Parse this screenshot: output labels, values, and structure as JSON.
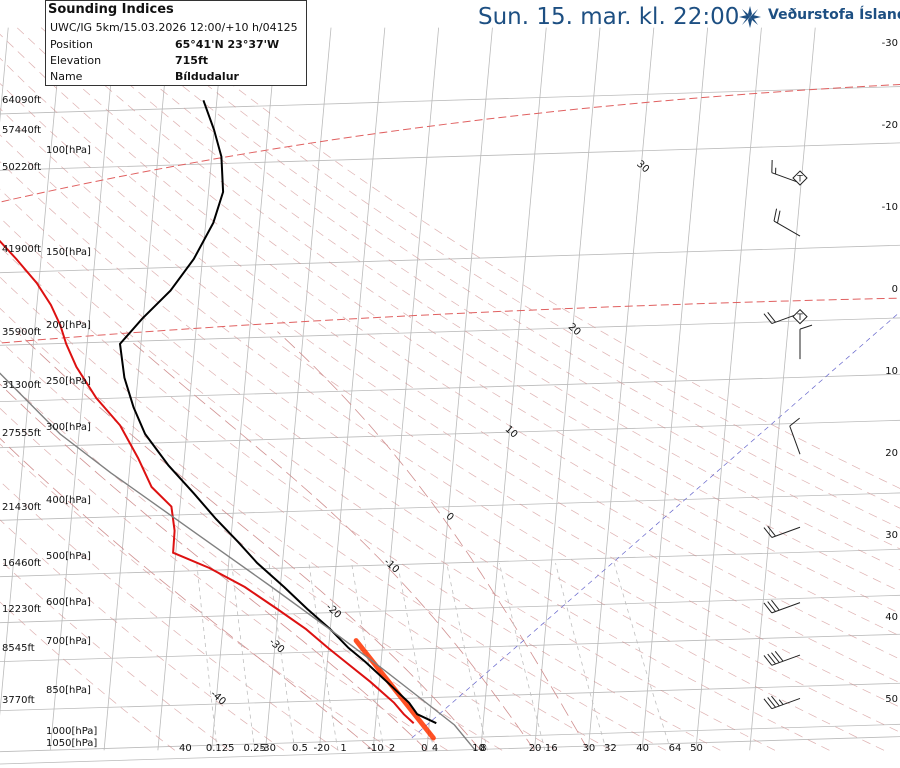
{
  "header": {
    "title": "Sun. 15. mar. kl. 22:00",
    "brand": "Veðurstofa Íslands",
    "brand_color": "#1d4f82"
  },
  "info": {
    "title": "Sounding Indices",
    "model_run": "UWC/IG 5km/15.03.2026 12:00/+10 h/04125",
    "rows": [
      {
        "label": "Position",
        "value": "65°41'N 23°37'W"
      },
      {
        "label": "Elevation",
        "value": "715ft"
      },
      {
        "label": "Name",
        "value": "Bíldudalur"
      }
    ]
  },
  "chart_data": {
    "type": "line",
    "title": "",
    "xlabel": "",
    "ylabel": "",
    "altitude_labels": [
      {
        "text": "64090ft",
        "p": 80
      },
      {
        "text": "57440ft",
        "p": 90
      },
      {
        "text": "50220ft",
        "p": 104
      },
      {
        "text": "41900ft",
        "p": 144
      },
      {
        "text": "35900ft",
        "p": 200
      },
      {
        "text": "31300ft",
        "p": 247
      },
      {
        "text": "27555ft",
        "p": 299
      },
      {
        "text": "21430ft",
        "p": 400
      },
      {
        "text": "16460ft",
        "p": 500
      },
      {
        "text": "12230ft",
        "p": 600
      },
      {
        "text": "8545ft",
        "p": 700
      },
      {
        "text": "3770ft",
        "p": 860
      }
    ],
    "pressure_labels": [
      {
        "text": "100[hPa]",
        "p": 100
      },
      {
        "text": "150[hPa]",
        "p": 150
      },
      {
        "text": "200[hPa]",
        "p": 200
      },
      {
        "text": "250[hPa]",
        "p": 250
      },
      {
        "text": "300[hPa]",
        "p": 300
      },
      {
        "text": "400[hPa]",
        "p": 400
      },
      {
        "text": "500[hPa]",
        "p": 500
      },
      {
        "text": "600[hPa]",
        "p": 600
      },
      {
        "text": "700[hPa]",
        "p": 700
      },
      {
        "text": "850[hPa]",
        "p": 850
      },
      {
        "text": "1000[hPa]",
        "p": 1000
      },
      {
        "text": "1050[hPa]",
        "p": 1050
      }
    ],
    "right_labels": [
      "-30",
      "-20",
      "-10",
      "0",
      "10",
      "20",
      "30",
      "40",
      "50"
    ],
    "bottom_labels": [
      {
        "text": "40",
        "t": -45
      },
      {
        "text": "0.125",
        "t": -40
      },
      {
        "text": "0.25",
        "t": -33
      },
      {
        "text": "-30",
        "t": -30
      },
      {
        "text": "0.5",
        "t": -24
      },
      {
        "text": "-20",
        "t": -20
      },
      {
        "text": "1",
        "t": -15
      },
      {
        "text": "-10",
        "t": -10
      },
      {
        "text": "2",
        "t": -6
      },
      {
        "text": "0",
        "t": 0
      },
      {
        "text": "4",
        "t": 2
      },
      {
        "text": "10",
        "t": 9.5
      },
      {
        "text": "8",
        "t": 11
      },
      {
        "text": "20",
        "t": 20
      },
      {
        "text": "16",
        "t": 23
      },
      {
        "text": "30",
        "t": 30
      },
      {
        "text": "32",
        "t": 34
      },
      {
        "text": "40",
        "t": 40
      },
      {
        "text": "64",
        "t": 46
      },
      {
        "text": "50",
        "t": 50
      }
    ],
    "isotherm_labels": [
      {
        "text": "30",
        "t": 30,
        "p": 105
      },
      {
        "text": "20",
        "t": 20,
        "p": 200
      },
      {
        "text": "10",
        "t": 10,
        "p": 300
      },
      {
        "text": "0",
        "t": 0,
        "p": 420
      },
      {
        "text": "-10",
        "t": -10,
        "p": 510
      },
      {
        "text": "-20",
        "t": -20,
        "p": 610
      },
      {
        "text": "-30",
        "t": -30,
        "p": 700
      },
      {
        "text": "-40",
        "t": -40,
        "p": 860
      }
    ],
    "series": [
      {
        "role": "temperature",
        "color": "#000000",
        "points": [
          [
            943,
            1.3
          ],
          [
            910,
            -2.4
          ],
          [
            870,
            -4.1
          ],
          [
            800,
            -8.6
          ],
          [
            740,
            -12.9
          ],
          [
            700,
            -16.3
          ],
          [
            650,
            -20.0
          ],
          [
            600,
            -24.6
          ],
          [
            550,
            -29.3
          ],
          [
            500,
            -34.7
          ],
          [
            460,
            -38.6
          ],
          [
            420,
            -43.1
          ],
          [
            380,
            -47.6
          ],
          [
            340,
            -52.8
          ],
          [
            300,
            -57.7
          ],
          [
            270,
            -60.3
          ],
          [
            240,
            -62.5
          ],
          [
            210,
            -63.9
          ],
          [
            190,
            -60.2
          ],
          [
            170,
            -55.4
          ],
          [
            150,
            -51.6
          ],
          [
            130,
            -48.6
          ],
          [
            115,
            -47.3
          ],
          [
            100,
            -48.2
          ],
          [
            90,
            -50.0
          ],
          [
            80,
            -52.5
          ]
        ]
      },
      {
        "role": "dewpoint",
        "color": "#dd1111",
        "points": [
          [
            943,
            -2.9
          ],
          [
            910,
            -4.9
          ],
          [
            870,
            -6.9
          ],
          [
            800,
            -11.7
          ],
          [
            740,
            -16.6
          ],
          [
            700,
            -20.1
          ],
          [
            650,
            -24.5
          ],
          [
            600,
            -30.2
          ],
          [
            550,
            -36.6
          ],
          [
            510,
            -43.5
          ],
          [
            480,
            -50.5
          ],
          [
            440,
            -50.6
          ],
          [
            400,
            -51.6
          ],
          [
            370,
            -55.6
          ],
          [
            330,
            -58.6
          ],
          [
            290,
            -62.5
          ],
          [
            260,
            -67.4
          ],
          [
            230,
            -71.6
          ],
          [
            210,
            -73.9
          ],
          [
            195,
            -75.3
          ],
          [
            180,
            -77.4
          ],
          [
            165,
            -80.4
          ],
          [
            150,
            -84.6
          ],
          [
            135,
            -89.6
          ],
          [
            120,
            -89.2
          ],
          [
            110,
            -91.5
          ],
          [
            100,
            -92.8
          ],
          [
            90,
            -95.0
          ],
          [
            80,
            -97.5
          ]
        ]
      },
      {
        "role": "parcel",
        "color": "#808080",
        "points": [
          [
            1050,
            9
          ],
          [
            950,
            4.7
          ],
          [
            850,
            -2.4
          ],
          [
            750,
            -10.5
          ],
          [
            650,
            -20.1
          ],
          [
            550,
            -31.6
          ],
          [
            450,
            -45.7
          ],
          [
            350,
            -63.4
          ],
          [
            300,
            -73.5
          ],
          [
            230,
            -87.0
          ],
          [
            160,
            -101.1
          ]
        ]
      },
      {
        "role": "parcel-dry",
        "color": "#808080",
        "points": [
          [
            160,
            -101.1
          ],
          [
            100,
            -124
          ],
          [
            80,
            -135
          ]
        ]
      }
    ],
    "wind_barbs": [
      {
        "p": 111,
        "dir": 290,
        "speed": 15
      },
      {
        "p": 137,
        "dir": 300,
        "speed": 20
      },
      {
        "p": 186,
        "dir": 250,
        "speed": 20
      },
      {
        "p": 223,
        "dir": 0,
        "speed": 10
      },
      {
        "p": 325,
        "dir": 340,
        "speed": 10
      },
      {
        "p": 434,
        "dir": 250,
        "speed": 20
      },
      {
        "p": 585,
        "dir": 250,
        "speed": 30
      },
      {
        "p": 720,
        "dir": 250,
        "speed": 40
      },
      {
        "p": 855,
        "dir": 250,
        "speed": 35
      }
    ],
    "markers": [
      {
        "label": "T",
        "p": 108
      },
      {
        "label": "T",
        "p": 187
      }
    ],
    "colors": {
      "isobar": "#bbbbbb",
      "isotherm": "#bbbbbb",
      "dry_adiabat": "#d09090",
      "moist_adiabat": "#d09090",
      "mixing_ratio": "#c0c0c0",
      "freezing_level": "#e06060",
      "cape_low": "#ff3300",
      "cape_high": "#99dd33",
      "lcl_line": "#6666cc"
    }
  }
}
